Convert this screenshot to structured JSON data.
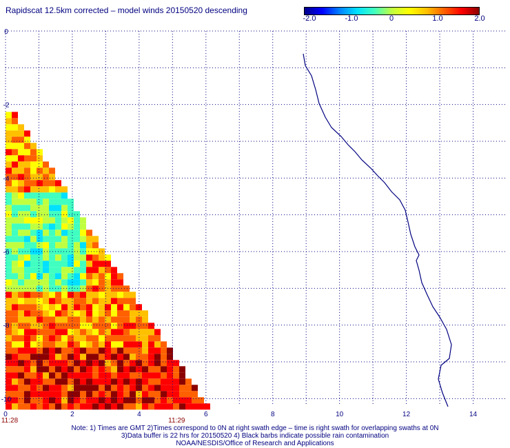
{
  "title": "Rapidscat 12.5km corrected – model winds 20150520 descending",
  "colorbar": {
    "colors": [
      "#00008b",
      "#0000ff",
      "#0080ff",
      "#00e0ff",
      "#40ffc0",
      "#c0ff40",
      "#ffff00",
      "#ffc000",
      "#ff6000",
      "#ff0000",
      "#8b0000"
    ],
    "labels": [
      "-2.0",
      "-1.0",
      "0",
      "1.0",
      "2.0"
    ]
  },
  "chart_data": {
    "type": "heatmap",
    "title": "Rapidscat 12.5km corrected – model winds 20150520 descending",
    "x_ticks": [
      "0",
      "2",
      "4",
      "6",
      "8",
      "10",
      "12",
      "14"
    ],
    "y_ticks": [
      "0",
      "-2",
      "-4",
      "-6",
      "-8",
      "-10"
    ],
    "xlim": [
      0,
      15
    ],
    "ylim": [
      -10.2,
      0
    ],
    "time_labels": [
      {
        "x": 0,
        "label": "11:28"
      },
      {
        "x": 5,
        "label": "11:29"
      }
    ],
    "grid": true,
    "color_range": [
      -2.0,
      2.0
    ],
    "swath_note": "Triangular swath in lower-left: values mostly 0.5 to 1.8 with cyan region (~-0.8) near y -5 to -6"
  },
  "footer": {
    "line1": "Note: 1) Times are GMT 2)Times correspond to 0N at right swath edge – time is right swath for overlapping swaths at 0N",
    "line2": "3)Data buffer is 22 hrs for 20150520 4) Black barbs indicate possible rain contamination",
    "line3": "NOAA/NESDIS/Office of Research and Applications"
  }
}
